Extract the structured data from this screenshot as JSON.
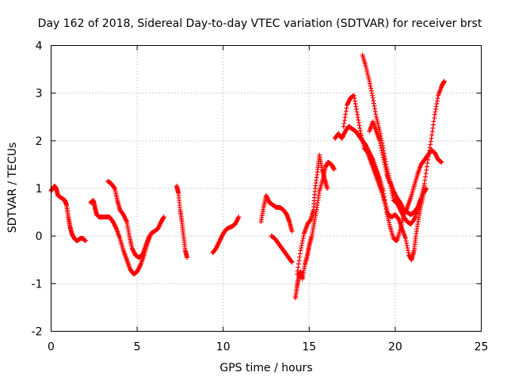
{
  "chart_data": {
    "type": "scatter",
    "title": "Day 162 of 2018, Sidereal Day-to-day VTEC variation (SDTVAR) for receiver brst",
    "xlabel": "GPS time / hours",
    "ylabel": "SDTVAR / TECUs",
    "xlim": [
      0,
      25
    ],
    "ylim": [
      -2,
      4
    ],
    "xticks": [
      0,
      5,
      10,
      15,
      20,
      25
    ],
    "yticks": [
      -2,
      -1,
      0,
      1,
      2,
      3,
      4
    ],
    "xtick_labels": [
      "0",
      "5",
      "10",
      "15",
      "20",
      "25"
    ],
    "ytick_labels": [
      "-2",
      "-1",
      "0",
      "1",
      "2",
      "3",
      "4"
    ],
    "grid": true,
    "marker": "+",
    "series": [
      {
        "name": "SDTVAR",
        "color": "#ff0000",
        "tracks": [
          [
            [
              0.0,
              0.95
            ],
            [
              0.1,
              1.0
            ],
            [
              0.2,
              1.05
            ],
            [
              0.3,
              1.0
            ],
            [
              0.4,
              0.85
            ],
            [
              0.6,
              0.8
            ],
            [
              0.8,
              0.75
            ],
            [
              0.9,
              0.65
            ],
            [
              1.0,
              0.4
            ],
            [
              1.1,
              0.2
            ],
            [
              1.2,
              0.05
            ],
            [
              1.35,
              -0.05
            ],
            [
              1.5,
              -0.1
            ],
            [
              1.7,
              -0.05
            ],
            [
              1.85,
              -0.05
            ],
            [
              2.0,
              -0.1
            ]
          ],
          [
            [
              2.3,
              0.7
            ],
            [
              2.45,
              0.75
            ],
            [
              2.55,
              0.6
            ],
            [
              2.65,
              0.45
            ],
            [
              2.8,
              0.4
            ],
            [
              3.0,
              0.4
            ],
            [
              3.2,
              0.4
            ],
            [
              3.4,
              0.4
            ],
            [
              3.6,
              0.3
            ],
            [
              3.8,
              0.15
            ],
            [
              4.0,
              -0.05
            ],
            [
              4.2,
              -0.3
            ],
            [
              4.4,
              -0.5
            ],
            [
              4.6,
              -0.7
            ],
            [
              4.8,
              -0.8
            ],
            [
              5.0,
              -0.75
            ],
            [
              5.2,
              -0.6
            ],
            [
              5.4,
              -0.4
            ],
            [
              5.6,
              -0.15
            ],
            [
              5.8,
              0.05
            ],
            [
              6.0,
              0.1
            ],
            [
              6.2,
              0.15
            ],
            [
              6.4,
              0.3
            ],
            [
              6.55,
              0.4
            ]
          ],
          [
            [
              3.3,
              1.15
            ],
            [
              3.5,
              1.1
            ],
            [
              3.7,
              1.0
            ],
            [
              3.85,
              0.75
            ],
            [
              4.0,
              0.55
            ],
            [
              4.2,
              0.45
            ],
            [
              4.4,
              0.3
            ],
            [
              4.55,
              0.0
            ],
            [
              4.7,
              -0.25
            ],
            [
              4.9,
              -0.4
            ],
            [
              5.1,
              -0.45
            ],
            [
              5.3,
              -0.4
            ],
            [
              5.5,
              -0.2
            ],
            [
              5.7,
              0.0
            ]
          ],
          [
            [
              7.3,
              1.05
            ],
            [
              7.4,
              0.9
            ],
            [
              7.5,
              0.55
            ],
            [
              7.6,
              0.3
            ],
            [
              7.7,
              0.0
            ],
            [
              7.8,
              -0.3
            ],
            [
              7.9,
              -0.45
            ]
          ],
          [
            [
              9.4,
              -0.35
            ],
            [
              9.6,
              -0.25
            ],
            [
              9.8,
              -0.1
            ],
            [
              10.0,
              0.05
            ],
            [
              10.2,
              0.15
            ],
            [
              10.5,
              0.2
            ],
            [
              10.7,
              0.25
            ],
            [
              10.9,
              0.4
            ]
          ],
          [
            [
              12.2,
              0.3
            ],
            [
              12.35,
              0.6
            ],
            [
              12.5,
              0.85
            ],
            [
              12.7,
              0.7
            ],
            [
              12.9,
              0.65
            ],
            [
              13.1,
              0.6
            ],
            [
              13.3,
              0.6
            ],
            [
              13.5,
              0.55
            ],
            [
              13.7,
              0.45
            ],
            [
              13.85,
              0.3
            ],
            [
              14.0,
              0.1
            ]
          ],
          [
            [
              12.8,
              0.0
            ],
            [
              13.0,
              -0.05
            ],
            [
              13.2,
              -0.15
            ],
            [
              13.4,
              -0.25
            ],
            [
              13.6,
              -0.35
            ],
            [
              13.8,
              -0.45
            ],
            [
              14.0,
              -0.55
            ]
          ],
          [
            [
              14.2,
              -1.3
            ],
            [
              14.3,
              -1.05
            ],
            [
              14.4,
              -0.85
            ],
            [
              14.5,
              -0.75
            ],
            [
              14.6,
              -0.9
            ],
            [
              14.75,
              -0.6
            ],
            [
              14.9,
              -0.4
            ],
            [
              15.0,
              -0.2
            ],
            [
              15.15,
              0.0
            ],
            [
              15.3,
              0.3
            ],
            [
              15.45,
              0.6
            ],
            [
              15.6,
              0.95
            ],
            [
              15.8,
              1.2
            ],
            [
              15.95,
              1.45
            ],
            [
              16.1,
              1.55
            ],
            [
              16.3,
              1.5
            ],
            [
              16.45,
              1.4
            ]
          ],
          [
            [
              14.3,
              -0.8
            ],
            [
              14.5,
              -0.3
            ],
            [
              14.7,
              0.05
            ],
            [
              14.9,
              0.25
            ],
            [
              15.1,
              0.35
            ],
            [
              15.25,
              0.55
            ],
            [
              15.35,
              1.0
            ],
            [
              15.5,
              1.4
            ],
            [
              15.6,
              1.7
            ],
            [
              15.75,
              1.4
            ],
            [
              15.9,
              1.2
            ],
            [
              16.05,
              1.0
            ]
          ],
          [
            [
              16.5,
              2.05
            ],
            [
              16.7,
              2.15
            ],
            [
              16.9,
              2.05
            ],
            [
              17.1,
              2.2
            ],
            [
              17.3,
              2.3
            ],
            [
              17.5,
              2.25
            ],
            [
              17.7,
              2.2
            ],
            [
              17.9,
              2.1
            ],
            [
              18.1,
              2.0
            ],
            [
              18.3,
              1.9
            ],
            [
              18.5,
              1.75
            ],
            [
              18.7,
              1.6
            ],
            [
              18.9,
              1.4
            ],
            [
              19.1,
              1.2
            ],
            [
              19.3,
              0.95
            ],
            [
              19.5,
              0.5
            ],
            [
              19.7,
              0.2
            ],
            [
              19.9,
              -0.05
            ],
            [
              20.1,
              -0.1
            ],
            [
              20.3,
              0.15
            ],
            [
              20.5,
              0.45
            ],
            [
              20.7,
              0.6
            ],
            [
              20.9,
              0.8
            ],
            [
              21.1,
              1.05
            ],
            [
              21.3,
              1.3
            ],
            [
              21.5,
              1.5
            ],
            [
              21.7,
              1.6
            ],
            [
              21.9,
              1.7
            ],
            [
              22.1,
              1.8
            ],
            [
              22.3,
              1.75
            ],
            [
              22.5,
              1.6
            ],
            [
              22.7,
              1.55
            ]
          ],
          [
            [
              17.0,
              2.3
            ],
            [
              17.2,
              2.75
            ],
            [
              17.4,
              2.9
            ],
            [
              17.6,
              2.95
            ],
            [
              17.8,
              2.55
            ],
            [
              18.0,
              2.15
            ],
            [
              18.2,
              1.85
            ],
            [
              18.4,
              1.75
            ],
            [
              18.6,
              1.55
            ],
            [
              18.8,
              1.35
            ],
            [
              19.0,
              1.15
            ],
            [
              19.2,
              0.95
            ],
            [
              19.4,
              0.7
            ],
            [
              19.6,
              0.45
            ],
            [
              19.8,
              0.4
            ],
            [
              20.0,
              0.45
            ],
            [
              20.2,
              0.35
            ],
            [
              20.4,
              0.15
            ],
            [
              20.6,
              -0.05
            ],
            [
              20.8,
              -0.4
            ],
            [
              20.95,
              -0.5
            ],
            [
              21.1,
              -0.3
            ],
            [
              21.2,
              0.0
            ],
            [
              21.35,
              0.35
            ],
            [
              21.5,
              0.65
            ],
            [
              21.65,
              0.9
            ],
            [
              21.8,
              1.0
            ]
          ],
          [
            [
              18.1,
              3.8
            ],
            [
              18.3,
              3.55
            ],
            [
              18.5,
              3.25
            ],
            [
              18.7,
              2.9
            ],
            [
              18.9,
              2.5
            ],
            [
              19.1,
              2.2
            ],
            [
              19.3,
              1.85
            ],
            [
              19.5,
              1.45
            ],
            [
              19.7,
              1.15
            ],
            [
              19.9,
              0.95
            ],
            [
              20.1,
              0.8
            ],
            [
              20.3,
              0.7
            ],
            [
              20.5,
              0.55
            ],
            [
              20.7,
              0.5
            ],
            [
              20.9,
              0.45
            ],
            [
              21.1,
              0.5
            ],
            [
              21.3,
              0.6
            ],
            [
              21.5,
              0.8
            ],
            [
              21.7,
              1.1
            ],
            [
              21.9,
              1.6
            ],
            [
              22.1,
              2.05
            ],
            [
              22.3,
              2.55
            ],
            [
              22.5,
              2.95
            ],
            [
              22.7,
              3.15
            ],
            [
              22.85,
              3.25
            ]
          ],
          [
            [
              18.5,
              2.2
            ],
            [
              18.7,
              2.4
            ],
            [
              18.9,
              2.2
            ],
            [
              19.1,
              2.0
            ],
            [
              19.3,
              1.65
            ],
            [
              19.5,
              1.3
            ],
            [
              19.7,
              1.1
            ],
            [
              19.9,
              0.75
            ],
            [
              20.1,
              0.7
            ],
            [
              20.3,
              0.55
            ],
            [
              20.5,
              0.4
            ],
            [
              20.7,
              0.3
            ],
            [
              20.9,
              0.25
            ],
            [
              21.1,
              0.35
            ],
            [
              21.3,
              0.55
            ],
            [
              21.5,
              0.8
            ]
          ]
        ]
      }
    ]
  }
}
